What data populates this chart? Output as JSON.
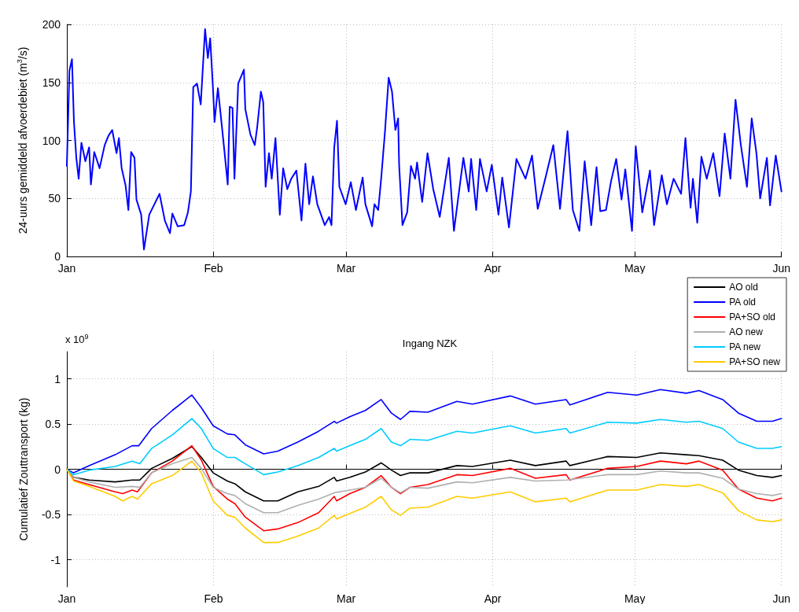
{
  "chart_data": [
    {
      "type": "line",
      "ylabel": "24-uurs gemiddeld afvoerdebiet (m$^{3}$/s)",
      "xlim": [
        "--01-01",
        "--06-01"
      ],
      "xticks": [
        {
          "value": "--01-01",
          "label": "Jan"
        },
        {
          "value": "--02-01",
          "label": "Feb"
        },
        {
          "value": "--03-01",
          "label": "Mar"
        },
        {
          "value": "--04-01",
          "label": "Apr"
        },
        {
          "value": "--05-01",
          "label": "May"
        },
        {
          "value": "--06-01",
          "label": "Jun"
        }
      ],
      "ylim": [
        0,
        200
      ],
      "yticks": [
        0,
        50,
        100,
        150,
        200
      ],
      "grid": true,
      "legend": false,
      "marker": "none",
      "line_style": "solid",
      "series": [
        {
          "color": "#0000ff",
          "x": [
            "--01-01T00:00",
            "--01-01T13:00",
            "--01-02T02:00",
            "--01-02T12:00",
            "--01-03T00:00",
            "--01-03T12:00",
            "--01-04T02:00",
            "--01-04T22:00",
            "--01-05T17:00",
            "--01-06T02:00",
            "--01-06T19:00",
            "--01-07T22:00",
            "--01-09T00:00",
            "--01-09T19:00",
            "--01-10T14:00",
            "--01-11T12:00",
            "--01-12T00:00",
            "--01-12T14:00",
            "--01-13T10:00",
            "--01-14T00:00",
            "--01-14T14:00",
            "--01-15T07:00",
            "--01-15T17:00",
            "--01-16T17:00",
            "--01-17T07:00",
            "--01-18T10:00",
            "--01-19T12:00",
            "--01-20T14:00",
            "--01-21T17:00",
            "--01-22T19:00",
            "--01-23T07:00",
            "--01-24T10:00",
            "--01-25T19:00",
            "--01-26T14:00",
            "--01-27T05:00",
            "--01-27T17:00",
            "--01-28T12:00",
            "--01-29T07:00",
            "--01-30T05:00",
            "--01-30T19:00",
            "--01-31T07:00",
            "--01-31T22:00",
            "--02-01T05:00",
            "--02-01T22:00",
            "--02-02T19:00",
            "--02-03T07:00",
            "--02-04T00:00",
            "--02-04T10:00",
            "--02-05T00:00",
            "--02-05T10:00",
            "--02-06T05:00",
            "--02-06T22:00",
            "--02-07T10:00",
            "--02-07T17:00",
            "--02-08T19:00",
            "--02-09T17:00",
            "--02-10T05:00",
            "--02-11T00:00",
            "--02-11T12:00",
            "--02-12T00:00",
            "--02-12T17:00",
            "--02-13T07:00",
            "--02-14T02:00",
            "--02-15T00:00",
            "--02-15T17:00",
            "--02-16T14:00",
            "--02-17T10:00",
            "--02-18T12:00",
            "--02-19T14:00",
            "--02-20T10:00",
            "--02-21T05:00",
            "--02-22T00:00",
            "--02-22T22:00",
            "--02-24T12:00",
            "--02-25T10:00",
            "--02-25T22:00",
            "--02-26T12:00",
            "--02-27T02:00",
            "--02-27T14:00",
            "--02-28T22:00",
            "--03-02T00:00",
            "--03-03T02:00",
            "--03-04T12:00",
            "--03-05T02:00",
            "--03-06T12:00",
            "--03-07T00:00",
            "--03-07T19:00",
            "--03-08T10:00",
            "--03-09T05:00",
            "--03-10T00:00",
            "--03-10T17:00",
            "--03-11T10:00",
            "--03-12T00:00",
            "--03-12T05:00",
            "--03-12T22:00",
            "--03-13T22:00",
            "--03-14T17:00",
            "--03-15T14:00",
            "--03-16T00:00",
            "--03-17T02:00",
            "--03-18T05:00",
            "--03-19T10:00",
            "--03-20T19:00",
            "--03-22T17:00",
            "--03-23T19:00",
            "--03-25T19:00",
            "--03-26T22:00",
            "--03-27T10:00",
            "--03-28T12:00",
            "--03-29T07:00",
            "--03-30T17:00",
            "--03-31T19:00",
            "--04-02T05:00",
            "--04-03T00:00",
            "--04-04T10:00",
            "--04-06T00:00",
            "--04-07T22:00",
            "--04-09T07:00",
            "--04-10T12:00",
            "--04-12T02:00",
            "--04-13T19:00",
            "--04-15T05:00",
            "--04-16T19:00",
            "--04-17T22:00",
            "--04-19T07:00",
            "--04-20T10:00",
            "--04-21T19:00",
            "--04-22T22:00",
            "--04-23T17:00",
            "--04-24T22:00",
            "--04-26T00:00",
            "--04-27T02:00",
            "--04-28T05:00",
            "--04-29T00:00",
            "--04-30T10:00",
            "--05-01T05:00",
            "--05-02T14:00",
            "--05-04T05:00",
            "--05-05T02:00",
            "--05-06T17:00",
            "--05-07T19:00",
            "--05-09T05:00",
            "--05-10T19:00",
            "--05-11T17:00",
            "--05-12T19:00",
            "--05-13T07:00",
            "--05-14T05:00",
            "--05-15T02:00",
            "--05-16T05:00",
            "--05-17T14:00",
            "--05-18T22:00",
            "--05-20T00:00",
            "--05-21T05:00",
            "--05-22T07:00",
            "--05-23T10:00",
            "--05-24T17:00",
            "--05-25T17:00",
            "--05-26T17:00",
            "--05-27T12:00",
            "--05-28T22:00",
            "--05-29T14:00",
            "--05-30T19:00",
            "--06-01T00:00"
          ],
          "values": [
            78,
            160,
            170,
            116,
            85,
            67,
            98,
            82,
            94,
            62,
            90,
            76,
            96,
            104,
            109,
            89,
            102,
            76,
            61,
            40,
            90,
            85,
            49,
            36,
            6,
            36,
            45,
            54,
            31,
            20,
            37,
            26,
            27,
            38,
            56,
            146,
            149,
            131,
            196,
            171,
            188,
            142,
            116,
            145,
            111,
            91,
            62,
            129,
            128,
            67,
            149,
            156,
            161,
            127,
            105,
            96,
            111,
            142,
            133,
            60,
            89,
            67,
            102,
            36,
            76,
            58,
            67,
            74,
            31,
            80,
            45,
            69,
            45,
            27,
            34,
            27,
            94,
            117,
            60,
            45,
            64,
            40,
            68,
            45,
            26,
            45,
            40,
            67,
            107,
            154,
            142,
            109,
            119,
            79,
            27,
            38,
            78,
            67,
            81,
            47,
            89,
            58,
            34,
            85,
            22,
            85,
            56,
            84,
            40,
            84,
            56,
            79,
            36,
            68,
            25,
            84,
            67,
            87,
            41,
            67,
            96,
            41,
            108,
            40,
            22,
            82,
            27,
            77,
            39,
            40,
            65,
            84,
            49,
            75,
            22,
            95,
            38,
            74,
            27,
            70,
            45,
            67,
            54,
            102,
            42,
            67,
            29,
            86,
            67,
            89,
            52,
            106,
            67,
            135,
            96,
            60,
            119,
            89,
            50,
            85,
            44,
            87,
            56
          ]
        }
      ]
    },
    {
      "type": "line",
      "title": "Ingang NZK",
      "ylabel": "Cumulatief Zouttransport (kg)",
      "annotations": [
        "x 10$^{9}$"
      ],
      "xlim": [
        "--01-01",
        "--06-01"
      ],
      "xticks": [
        {
          "value": "--01-01",
          "label": "Jan"
        },
        {
          "value": "--02-01",
          "label": "Feb"
        },
        {
          "value": "--03-01",
          "label": "Mar"
        },
        {
          "value": "--04-01",
          "label": "Apr"
        },
        {
          "value": "--05-01",
          "label": "May"
        },
        {
          "value": "--06-01",
          "label": "Jun"
        }
      ],
      "ylim": [
        -1.3,
        1.3
      ],
      "yticks": [
        -1,
        -0.5,
        0,
        0.5,
        1
      ],
      "grid": true,
      "legend": "top right",
      "marker": "none",
      "line_style": "solid",
      "series": [
        {
          "name": "AO old",
          "color": "#000000",
          "x": [
            "--01-01T00:00",
            "--01-02T10:00",
            "--01-05T17:00",
            "--01-11T05:00",
            "--01-14T19:00",
            "--01-16T10:00",
            "--01-18T22:00",
            "--01-23T07:00",
            "--01-27T10:00",
            "--01-29T10:00",
            "--01-31T22:00",
            "--02-03T22:00",
            "--02-05T12:00",
            "--02-07T17:00",
            "--02-11T14:00",
            "--02-14T14:00",
            "--02-18T19:00",
            "--02-23T05:00",
            "--02-26T12:00",
            "--02-27T00:00",
            "--03-01T19:00",
            "--03-05T02:00",
            "--03-08T10:00",
            "--03-10T14:00",
            "--03-12T12:00",
            "--03-14T12:00",
            "--03-18T07:00",
            "--03-24T10:00",
            "--03-27T17:00",
            "--04-04T17:00",
            "--04-10T00:00",
            "--04-16T12:00",
            "--04-17T07:00",
            "--04-25T07:00",
            "--05-01T10:00",
            "--05-06T10:00",
            "--05-11T22:00",
            "--05-14T14:00",
            "--05-19T14:00",
            "--05-22T22:00",
            "--05-26T19:00",
            "--05-30T02:00",
            "--06-01T00:00"
          ],
          "values": [
            0,
            -0.09,
            -0.12,
            -0.14,
            -0.12,
            -0.12,
            0.01,
            0.12,
            0.25,
            0.13,
            -0.04,
            -0.13,
            -0.16,
            -0.25,
            -0.35,
            -0.35,
            -0.25,
            -0.19,
            -0.09,
            -0.13,
            -0.09,
            -0.03,
            0.07,
            -0.01,
            -0.07,
            -0.04,
            -0.04,
            0.04,
            0.03,
            0.1,
            0.04,
            0.09,
            0.04,
            0.14,
            0.13,
            0.18,
            0.16,
            0.15,
            0.1,
            -0.01,
            -0.07,
            -0.09,
            -0.07
          ]
        },
        {
          "name": "PA old",
          "color": "#0000ff",
          "x": [
            "--01-01T00:00",
            "--01-02T10:00",
            "--01-05T17:00",
            "--01-11T05:00",
            "--01-14T19:00",
            "--01-16T05:00",
            "--01-18T22:00",
            "--01-23T07:00",
            "--01-27T10:00",
            "--01-29T10:00",
            "--01-31T22:00",
            "--02-03T22:00",
            "--02-05T12:00",
            "--02-07T17:00",
            "--02-11T14:00",
            "--02-14T14:00",
            "--02-18T19:00",
            "--02-23T05:00",
            "--02-26T12:00",
            "--02-27T00:00",
            "--03-01T19:00",
            "--03-05T02:00",
            "--03-08T10:00",
            "--03-10T14:00",
            "--03-12T12:00",
            "--03-14T12:00",
            "--03-18T07:00",
            "--03-24T10:00",
            "--03-27T17:00",
            "--04-04T17:00",
            "--04-10T00:00",
            "--04-16T12:00",
            "--04-17T07:00",
            "--04-25T07:00",
            "--05-01T10:00",
            "--05-06T10:00",
            "--05-11T22:00",
            "--05-14T14:00",
            "--05-19T14:00",
            "--05-22T22:00",
            "--05-26T19:00",
            "--05-30T02:00",
            "--06-01T00:00"
          ],
          "values": [
            0,
            -0.04,
            0.04,
            0.16,
            0.26,
            0.26,
            0.45,
            0.65,
            0.82,
            0.68,
            0.48,
            0.39,
            0.38,
            0.27,
            0.17,
            0.2,
            0.3,
            0.42,
            0.53,
            0.51,
            0.58,
            0.65,
            0.77,
            0.62,
            0.55,
            0.64,
            0.63,
            0.75,
            0.72,
            0.81,
            0.72,
            0.77,
            0.71,
            0.85,
            0.82,
            0.88,
            0.84,
            0.87,
            0.77,
            0.62,
            0.53,
            0.53,
            0.56
          ]
        },
        {
          "name": "PA+SO old",
          "color": "#ff0000",
          "x": [
            "--01-01T00:00",
            "--01-02T10:00",
            "--01-05T17:00",
            "--01-11T05:00",
            "--01-12T19:00",
            "--01-14T19:00",
            "--01-15T22:00",
            "--01-18T22:00",
            "--01-23T07:00",
            "--01-27T10:00",
            "--01-29T10:00",
            "--01-31T22:00",
            "--02-03T22:00",
            "--02-05T12:00",
            "--02-07T17:00",
            "--02-11T14:00",
            "--02-14T14:00",
            "--02-18T19:00",
            "--02-23T05:00",
            "--02-26T12:00",
            "--02-27T00:00",
            "--03-01T19:00",
            "--03-05T02:00",
            "--03-08T10:00",
            "--03-10T14:00",
            "--03-12T12:00",
            "--03-14T12:00",
            "--03-18T07:00",
            "--03-24T10:00",
            "--03-27T17:00",
            "--04-04T17:00",
            "--04-10T00:00",
            "--04-16T12:00",
            "--04-17T07:00",
            "--04-25T07:00",
            "--05-01T10:00",
            "--05-06T10:00",
            "--05-11T22:00",
            "--05-14T14:00",
            "--05-19T14:00",
            "--05-22T22:00",
            "--05-26T19:00",
            "--05-30T02:00",
            "--06-01T00:00"
          ],
          "values": [
            0,
            -0.12,
            -0.17,
            -0.25,
            -0.27,
            -0.23,
            -0.25,
            -0.04,
            0.09,
            0.26,
            0.1,
            -0.19,
            -0.33,
            -0.38,
            -0.53,
            -0.68,
            -0.66,
            -0.59,
            -0.48,
            -0.3,
            -0.35,
            -0.27,
            -0.2,
            -0.07,
            -0.2,
            -0.27,
            -0.2,
            -0.17,
            -0.06,
            -0.07,
            0.01,
            -0.1,
            -0.06,
            -0.12,
            0.01,
            0.03,
            0.09,
            0.06,
            0.09,
            -0.01,
            -0.22,
            -0.32,
            -0.35,
            -0.32
          ]
        },
        {
          "name": "AO new",
          "color": "#b0b0b0",
          "x": [
            "--01-01T00:00",
            "--01-02T10:00",
            "--01-05T17:00",
            "--01-11T05:00",
            "--01-14T19:00",
            "--01-16T10:00",
            "--01-18T22:00",
            "--01-23T07:00",
            "--01-27T10:00",
            "--01-29T10:00",
            "--01-31T22:00",
            "--02-03T22:00",
            "--02-05T12:00",
            "--02-07T17:00",
            "--02-11T14:00",
            "--02-14T14:00",
            "--02-18T19:00",
            "--02-23T05:00",
            "--02-26T12:00",
            "--03-01T19:00",
            "--03-05T02:00",
            "--03-08T10:00",
            "--03-10T14:00",
            "--03-12T12:00",
            "--03-14T12:00",
            "--03-18T07:00",
            "--03-24T10:00",
            "--03-27T17:00",
            "--04-04T17:00",
            "--04-10T00:00",
            "--04-16T12:00",
            "--04-25T07:00",
            "--05-01T10:00",
            "--05-06T10:00",
            "--05-11T22:00",
            "--05-14T14:00",
            "--05-19T14:00",
            "--05-22T22:00",
            "--05-26T19:00",
            "--05-30T02:00",
            "--06-01T00:00"
          ],
          "values": [
            0,
            -0.09,
            -0.14,
            -0.2,
            -0.19,
            -0.2,
            -0.04,
            0.06,
            0.13,
            0.01,
            -0.2,
            -0.27,
            -0.29,
            -0.38,
            -0.48,
            -0.48,
            -0.4,
            -0.33,
            -0.26,
            -0.23,
            -0.2,
            -0.1,
            -0.2,
            -0.26,
            -0.2,
            -0.21,
            -0.14,
            -0.15,
            -0.09,
            -0.13,
            -0.12,
            -0.06,
            -0.06,
            -0.02,
            -0.04,
            -0.04,
            -0.1,
            -0.22,
            -0.27,
            -0.29,
            -0.27
          ]
        },
        {
          "name": "PA new",
          "color": "#00ccff",
          "x": [
            "--01-01T00:00",
            "--01-02T10:00",
            "--01-05T17:00",
            "--01-11T05:00",
            "--01-14T19:00",
            "--01-16T10:00",
            "--01-18T22:00",
            "--01-23T07:00",
            "--01-27T10:00",
            "--01-29T10:00",
            "--01-31T22:00",
            "--02-03T22:00",
            "--02-05T12:00",
            "--02-07T17:00",
            "--02-11T14:00",
            "--02-14T14:00",
            "--02-18T19:00",
            "--02-23T05:00",
            "--02-26T12:00",
            "--02-27T00:00",
            "--03-01T19:00",
            "--03-05T02:00",
            "--03-08T10:00",
            "--03-10T14:00",
            "--03-12T12:00",
            "--03-14T12:00",
            "--03-18T07:00",
            "--03-24T10:00",
            "--03-27T17:00",
            "--04-04T17:00",
            "--04-10T00:00",
            "--04-16T12:00",
            "--04-17T07:00",
            "--04-25T07:00",
            "--05-01T10:00",
            "--05-06T10:00",
            "--05-11T22:00",
            "--05-14T14:00",
            "--05-19T14:00",
            "--05-22T22:00",
            "--05-26T19:00",
            "--05-30T02:00",
            "--06-01T00:00"
          ],
          "values": [
            0,
            -0.06,
            -0.01,
            0.03,
            0.09,
            0.06,
            0.23,
            0.38,
            0.56,
            0.45,
            0.23,
            0.13,
            0.13,
            0.06,
            -0.06,
            -0.03,
            0.04,
            0.13,
            0.23,
            0.2,
            0.26,
            0.33,
            0.45,
            0.3,
            0.26,
            0.33,
            0.32,
            0.42,
            0.4,
            0.48,
            0.4,
            0.45,
            0.4,
            0.52,
            0.51,
            0.55,
            0.52,
            0.53,
            0.45,
            0.3,
            0.23,
            0.23,
            0.25
          ]
        },
        {
          "name": "PA+SO new",
          "color": "#ffcc00",
          "x": [
            "--01-01T00:00",
            "--01-02T10:00",
            "--01-05T17:00",
            "--01-11T05:00",
            "--01-12T19:00",
            "--01-14T19:00",
            "--01-15T22:00",
            "--01-18T22:00",
            "--01-23T07:00",
            "--01-27T10:00",
            "--01-29T10:00",
            "--01-31T22:00",
            "--02-03T22:00",
            "--02-05T12:00",
            "--02-07T17:00",
            "--02-11T14:00",
            "--02-14T14:00",
            "--02-18T19:00",
            "--02-23T05:00",
            "--02-26T12:00",
            "--02-27T00:00",
            "--03-01T19:00",
            "--03-05T02:00",
            "--03-08T10:00",
            "--03-10T14:00",
            "--03-12T12:00",
            "--03-14T12:00",
            "--03-18T07:00",
            "--03-24T10:00",
            "--03-27T17:00",
            "--04-04T17:00",
            "--04-10T00:00",
            "--04-16T12:00",
            "--04-17T07:00",
            "--04-25T07:00",
            "--05-01T10:00",
            "--05-06T10:00",
            "--05-11T22:00",
            "--05-14T14:00",
            "--05-19T14:00",
            "--05-22T22:00",
            "--05-26T19:00",
            "--05-30T02:00",
            "--06-01T00:00"
          ],
          "values": [
            0,
            -0.13,
            -0.19,
            -0.3,
            -0.35,
            -0.3,
            -0.33,
            -0.16,
            -0.07,
            0.09,
            -0.04,
            -0.35,
            -0.51,
            -0.53,
            -0.65,
            -0.81,
            -0.81,
            -0.74,
            -0.65,
            -0.51,
            -0.55,
            -0.49,
            -0.42,
            -0.3,
            -0.45,
            -0.51,
            -0.43,
            -0.42,
            -0.3,
            -0.32,
            -0.25,
            -0.36,
            -0.32,
            -0.36,
            -0.23,
            -0.23,
            -0.17,
            -0.19,
            -0.17,
            -0.26,
            -0.46,
            -0.56,
            -0.58,
            -0.56
          ]
        }
      ]
    }
  ]
}
